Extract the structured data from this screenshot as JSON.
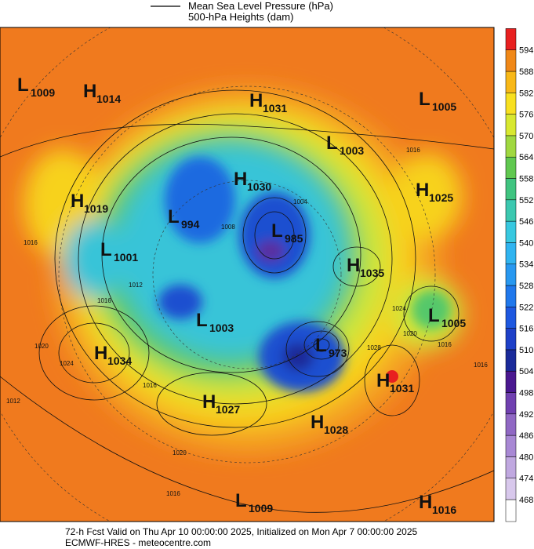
{
  "legend": {
    "items": [
      "Mean Sea Level Pressure (hPa)",
      "500-hPa Heights (dam)"
    ]
  },
  "colorbar": {
    "ticks": [
      468,
      474,
      480,
      486,
      492,
      498,
      504,
      510,
      516,
      522,
      528,
      534,
      540,
      546,
      552,
      558,
      564,
      570,
      576,
      582,
      588,
      594
    ],
    "colors": [
      "#d8c8ec",
      "#c0a8e0",
      "#a888d4",
      "#9068c4",
      "#7040b0",
      "#4a1890",
      "#1a2a9a",
      "#1e40c8",
      "#1e58e0",
      "#2078ec",
      "#2898f0",
      "#30b4f0",
      "#38c8e0",
      "#3cc8b0",
      "#40c480",
      "#60c850",
      "#a0d840",
      "#d8e830",
      "#f8e020",
      "#f8b818",
      "#f08818",
      "#e82020"
    ]
  },
  "centers": [
    {
      "letter": "L",
      "pressure": "1009"
    },
    {
      "letter": "H",
      "pressure": "1014"
    },
    {
      "letter": "H",
      "pressure": "1031"
    },
    {
      "letter": "L",
      "pressure": "1005"
    },
    {
      "letter": "L",
      "pressure": "1003"
    },
    {
      "letter": "H",
      "pressure": "1030"
    },
    {
      "letter": "H",
      "pressure": "1025"
    },
    {
      "letter": "H",
      "pressure": "1019"
    },
    {
      "letter": "L",
      "pressure": "994"
    },
    {
      "letter": "L",
      "pressure": "985"
    },
    {
      "letter": "L",
      "pressure": "1001"
    },
    {
      "letter": "H",
      "pressure": "1035"
    },
    {
      "letter": "L",
      "pressure": "1005"
    },
    {
      "letter": "L",
      "pressure": "1003"
    },
    {
      "letter": "L",
      "pressure": "973"
    },
    {
      "letter": "H",
      "pressure": "1034"
    },
    {
      "letter": "H",
      "pressure": "1031"
    },
    {
      "letter": "H",
      "pressure": "1027"
    },
    {
      "letter": "H",
      "pressure": "1028"
    },
    {
      "letter": "L",
      "pressure": "1009"
    },
    {
      "letter": "H",
      "pressure": "1016"
    }
  ],
  "contour_labels": [
    "1016",
    "1004",
    "1016",
    "1016",
    "1012",
    "1020",
    "1024",
    "1016",
    "1012",
    "1020",
    "1016",
    "1016",
    "1020",
    "1024",
    "1028",
    "1016",
    "1008"
  ],
  "footer": [
    "72-h Fcst Valid on Thu Apr 10 00:00:00 2025, Initialized on Mon Apr  7 00:00:00 2025",
    "ECMWF-HRES  - meteocentre.com"
  ]
}
